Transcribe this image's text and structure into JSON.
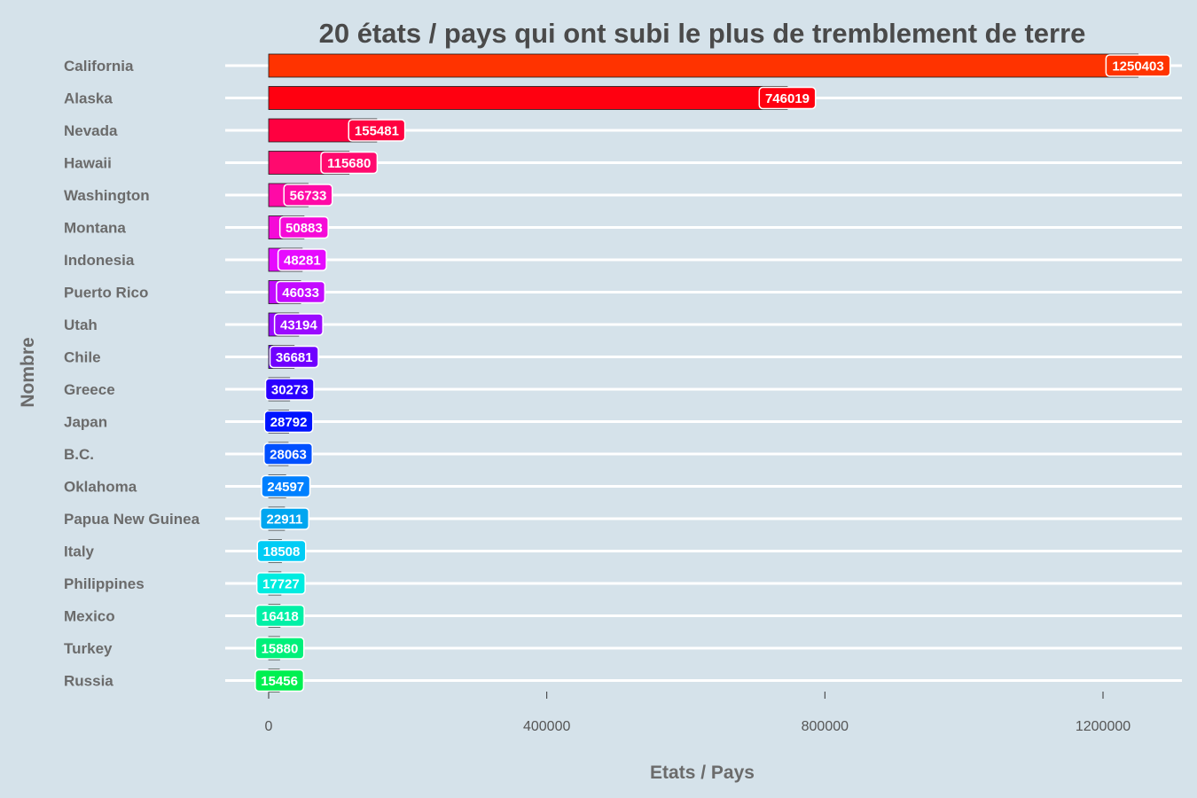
{
  "chart_data": {
    "type": "bar",
    "orientation": "horizontal",
    "title": "20 états / pays qui ont subi le plus de tremblement de terre",
    "xlabel": "Etats / Pays",
    "ylabel": "Nombre",
    "xlim": [
      0,
      1300000
    ],
    "xticks": [
      0,
      400000,
      800000,
      1200000
    ],
    "xtick_labels": [
      "0",
      "400000",
      "800000",
      "1200000"
    ],
    "grid": "horizontal lines at categories",
    "legend": "none",
    "categories": [
      "California",
      "Alaska",
      "Nevada",
      "Hawaii",
      "Washington",
      "Montana",
      "Indonesia",
      "Puerto Rico",
      "Utah",
      "Chile",
      "Greece",
      "Japan",
      "B.C.",
      "Oklahoma",
      "Papua New Guinea",
      "Italy",
      "Philippines",
      "Mexico",
      "Turkey",
      "Russia"
    ],
    "values": [
      1250403,
      746019,
      155481,
      115680,
      56733,
      50883,
      48281,
      46033,
      43194,
      36681,
      30273,
      28792,
      28063,
      24597,
      22911,
      18508,
      17727,
      16418,
      15880,
      15456
    ],
    "labels": [
      "1250403",
      "746019",
      "155481",
      "115680",
      "56733",
      "50883",
      "48281",
      "46033",
      "43194",
      "36681",
      "30273",
      "28792",
      "28063",
      "24597",
      "22911",
      "18508",
      "17727",
      "16418",
      "15880",
      "15456"
    ],
    "colors": [
      "#ff3300",
      "#ff0010",
      "#ff0040",
      "#ff0a6e",
      "#ff0aa6",
      "#f50ad7",
      "#e60aff",
      "#c30aff",
      "#9a0aff",
      "#7000ff",
      "#2a00ff",
      "#0014ff",
      "#0050ff",
      "#0080ff",
      "#00a6f0",
      "#00ccf5",
      "#00ece0",
      "#00f0a6",
      "#00f07a",
      "#00f050"
    ],
    "background": "#d5e2ea"
  }
}
